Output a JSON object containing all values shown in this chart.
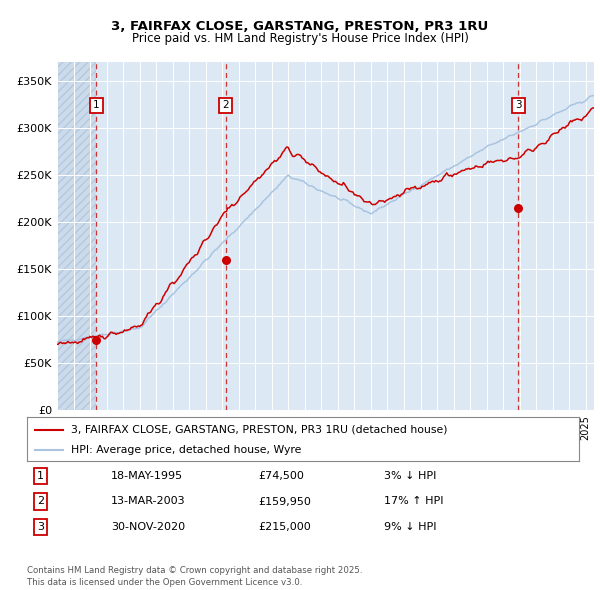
{
  "title1": "3, FAIRFAX CLOSE, GARSTANG, PRESTON, PR3 1RU",
  "title2": "Price paid vs. HM Land Registry's House Price Index (HPI)",
  "ylabel_ticks": [
    "£0",
    "£50K",
    "£100K",
    "£150K",
    "£200K",
    "£250K",
    "£300K",
    "£350K"
  ],
  "ytick_vals": [
    0,
    50000,
    100000,
    150000,
    200000,
    250000,
    300000,
    350000
  ],
  "ylim": [
    0,
    370000
  ],
  "xlim_start": 1993.0,
  "xlim_end": 2025.5,
  "sale1_date": 1995.38,
  "sale1_price": 74500,
  "sale2_date": 2003.2,
  "sale2_price": 159950,
  "sale3_date": 2020.92,
  "sale3_price": 215000,
  "ann1_label": "18-MAY-1995",
  "ann1_price": "£74,500",
  "ann1_hpi": "3% ↓ HPI",
  "ann2_label": "13-MAR-2003",
  "ann2_price": "£159,950",
  "ann2_hpi": "17% ↑ HPI",
  "ann3_label": "30-NOV-2020",
  "ann3_price": "£215,000",
  "ann3_hpi": "9% ↓ HPI",
  "legend1": "3, FAIRFAX CLOSE, GARSTANG, PRESTON, PR3 1RU (detached house)",
  "legend2": "HPI: Average price, detached house, Wyre",
  "footer": "Contains HM Land Registry data © Crown copyright and database right 2025.\nThis data is licensed under the Open Government Licence v3.0.",
  "red_color": "#cc0000",
  "blue_color": "#aac4e0",
  "bg_color": "#dce9f5",
  "grid_color": "#ffffff",
  "dashed_color": "#cc3333"
}
